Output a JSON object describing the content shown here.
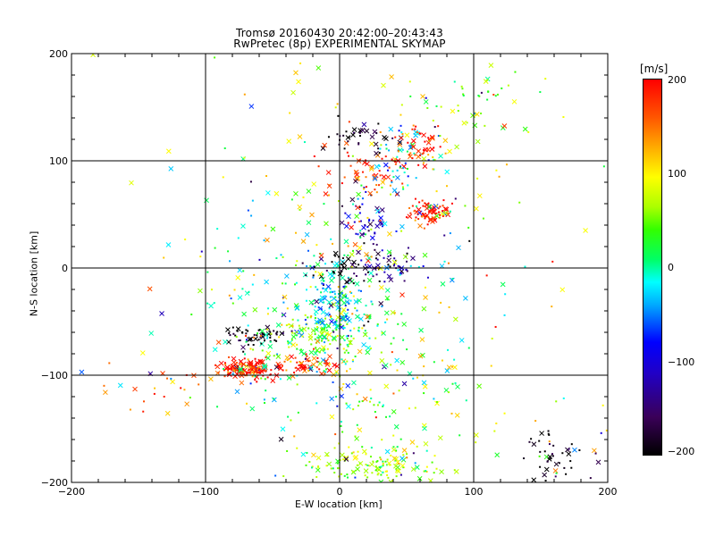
{
  "chart_data": {
    "type": "scatter",
    "title": "Tromsø 20160430 20:42:00–20:43:43",
    "subtitle": "RwPretec (8p) EXPERIMENTAL SKYMAP",
    "xlabel": "E-W location [km]",
    "ylabel": "N-S location [km]",
    "xlim": [
      -200,
      200
    ],
    "ylim": [
      -200,
      200
    ],
    "xticks": [
      -200,
      -100,
      0,
      100,
      200
    ],
    "yticks": [
      -200,
      -100,
      0,
      100,
      200
    ],
    "xtick_labels": [
      "−200",
      "−100",
      "0",
      "100",
      "200"
    ],
    "ytick_labels": [
      "−200",
      "−100",
      "0",
      "100",
      "200"
    ],
    "grid": true,
    "colorbar": {
      "unit": "[m/s]",
      "range": [
        -200,
        200
      ],
      "ticks": [
        200,
        100,
        0,
        -100,
        -200
      ],
      "tick_labels": [
        "200",
        "100",
        "0",
        "−100",
        "−200"
      ]
    },
    "clusters": [
      {
        "x": -70,
        "y": -94,
        "sx": 10,
        "sy": 5,
        "v": 190,
        "n": 140
      },
      {
        "x": -25,
        "y": -90,
        "sx": 12,
        "sy": 6,
        "v": 180,
        "n": 60
      },
      {
        "x": -65,
        "y": -62,
        "sx": 12,
        "sy": 4,
        "v": -200,
        "n": 60
      },
      {
        "x": -15,
        "y": -62,
        "sx": 20,
        "sy": 12,
        "v": 50,
        "n": 150
      },
      {
        "x": -5,
        "y": -30,
        "sx": 12,
        "sy": 15,
        "v": -20,
        "n": 110
      },
      {
        "x": 5,
        "y": 0,
        "sx": 15,
        "sy": 10,
        "v": -200,
        "n": 60
      },
      {
        "x": 40,
        "y": 0,
        "sx": 10,
        "sy": 8,
        "v": -130,
        "n": 40
      },
      {
        "x": 20,
        "y": 40,
        "sx": 12,
        "sy": 15,
        "v": -110,
        "n": 50
      },
      {
        "x": 67,
        "y": 52,
        "sx": 7,
        "sy": 5,
        "v": 190,
        "n": 80
      },
      {
        "x": 20,
        "y": 85,
        "sx": 15,
        "sy": 12,
        "v": 170,
        "n": 60
      },
      {
        "x": 50,
        "y": 100,
        "sx": 12,
        "sy": 15,
        "v": -20,
        "n": 50
      },
      {
        "x": 60,
        "y": 115,
        "sx": 10,
        "sy": 10,
        "v": 190,
        "n": 50
      },
      {
        "x": 20,
        "y": 120,
        "sx": 15,
        "sy": 10,
        "v": -200,
        "n": 40
      },
      {
        "x": 100,
        "y": 160,
        "sx": 20,
        "sy": 20,
        "v": 40,
        "n": 40
      },
      {
        "x": 25,
        "y": -185,
        "sx": 25,
        "sy": 8,
        "v": 60,
        "n": 120
      },
      {
        "x": 20,
        "y": -150,
        "sx": 30,
        "sy": 30,
        "v": 60,
        "n": 60
      },
      {
        "x": 160,
        "y": -175,
        "sx": 15,
        "sy": 15,
        "v": -200,
        "n": 50
      },
      {
        "x": -130,
        "y": -110,
        "sx": 25,
        "sy": 12,
        "v": 150,
        "n": 25
      },
      {
        "x": -5,
        "y": -40,
        "sx": 60,
        "sy": 60,
        "v": 0,
        "n": 250
      },
      {
        "x": 20,
        "y": 60,
        "sx": 70,
        "sy": 70,
        "v": 100,
        "n": 150
      },
      {
        "x": 40,
        "y": -120,
        "sx": 60,
        "sy": 40,
        "v": 100,
        "n": 60
      }
    ]
  }
}
